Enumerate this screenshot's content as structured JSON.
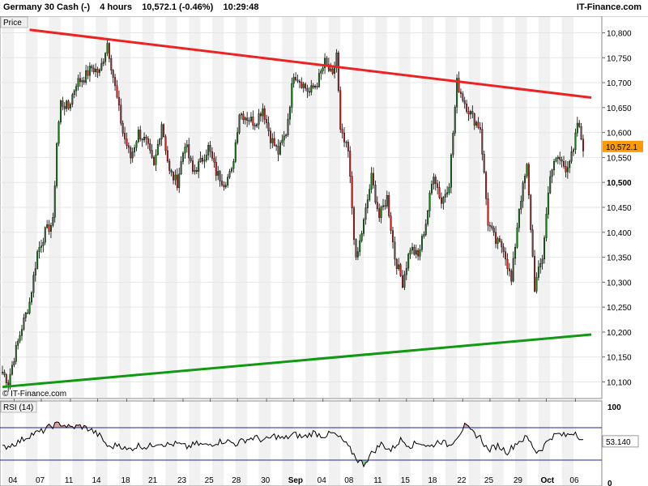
{
  "header": {
    "instrument": "Germany 30 Cash (-)",
    "timeframe": "4 hours",
    "price_change": "10,572.1 (-0.46%)",
    "time": "10:29:48",
    "brand": "IT-Finance.com"
  },
  "panels": {
    "price_label": "Price",
    "rsi_label": "RSI (14)",
    "watermark": "© IT-Finance.com"
  },
  "colors": {
    "up_candle": "#1a7a1a",
    "down_candle": "#cc2222",
    "resistance": "#ee2222",
    "support": "#119911",
    "rsi_band": "#2222aa",
    "overbought_fill": "#d9a0a0",
    "oversold_fill": "#88cc88",
    "last_price_tag": "#ff9900"
  },
  "chart_data": [
    {
      "type": "candlestick",
      "name": "price",
      "ylim": [
        10070,
        10830
      ],
      "y_ticks": [
        "10,800",
        "10,750",
        "10,700",
        "10,650",
        "10,600",
        "10,550",
        "10,500",
        "10,450",
        "10,400",
        "10,350",
        "10,300",
        "10,250",
        "10,200",
        "10,150",
        "10,100"
      ],
      "bold_tick": "10,500",
      "last_price": 10572.1,
      "last_price_label": "10,572.1",
      "x_ticks": [
        "04",
        "07",
        "11",
        "14",
        "18",
        "21",
        "23",
        "25",
        "28",
        "30",
        "Sep",
        "04",
        "08",
        "11",
        "15",
        "18",
        "22",
        "25",
        "29",
        "Oct",
        "06"
      ],
      "bold_x_ticks": [
        "Sep",
        "Oct"
      ],
      "anchors": [
        [
          0,
          10120
        ],
        [
          3,
          10100
        ],
        [
          6,
          10150
        ],
        [
          10,
          10210
        ],
        [
          14,
          10260
        ],
        [
          18,
          10360
        ],
        [
          22,
          10400
        ],
        [
          26,
          10420
        ],
        [
          28,
          10580
        ],
        [
          30,
          10660
        ],
        [
          34,
          10650
        ],
        [
          38,
          10700
        ],
        [
          42,
          10710
        ],
        [
          46,
          10730
        ],
        [
          50,
          10720
        ],
        [
          54,
          10780
        ],
        [
          58,
          10690
        ],
        [
          62,
          10600
        ],
        [
          66,
          10550
        ],
        [
          70,
          10600
        ],
        [
          74,
          10580
        ],
        [
          78,
          10530
        ],
        [
          82,
          10620
        ],
        [
          86,
          10520
        ],
        [
          90,
          10500
        ],
        [
          94,
          10580
        ],
        [
          98,
          10520
        ],
        [
          102,
          10540
        ],
        [
          106,
          10570
        ],
        [
          110,
          10520
        ],
        [
          114,
          10500
        ],
        [
          118,
          10520
        ],
        [
          122,
          10640
        ],
        [
          126,
          10630
        ],
        [
          130,
          10620
        ],
        [
          134,
          10650
        ],
        [
          138,
          10590
        ],
        [
          142,
          10560
        ],
        [
          146,
          10600
        ],
        [
          150,
          10720
        ],
        [
          154,
          10700
        ],
        [
          158,
          10680
        ],
        [
          162,
          10700
        ],
        [
          166,
          10740
        ],
        [
          170,
          10710
        ],
        [
          172,
          10760
        ],
        [
          174,
          10600
        ],
        [
          178,
          10560
        ],
        [
          182,
          10340
        ],
        [
          186,
          10420
        ],
        [
          190,
          10510
        ],
        [
          194,
          10430
        ],
        [
          198,
          10470
        ],
        [
          202,
          10350
        ],
        [
          206,
          10300
        ],
        [
          210,
          10370
        ],
        [
          214,
          10350
        ],
        [
          218,
          10420
        ],
        [
          222,
          10520
        ],
        [
          226,
          10460
        ],
        [
          230,
          10500
        ],
        [
          234,
          10700
        ],
        [
          238,
          10660
        ],
        [
          242,
          10630
        ],
        [
          246,
          10610
        ],
        [
          250,
          10420
        ],
        [
          254,
          10380
        ],
        [
          258,
          10370
        ],
        [
          262,
          10300
        ],
        [
          266,
          10450
        ],
        [
          270,
          10530
        ],
        [
          274,
          10290
        ],
        [
          278,
          10350
        ],
        [
          282,
          10520
        ],
        [
          286,
          10550
        ],
        [
          290,
          10530
        ],
        [
          294,
          10560
        ],
        [
          296,
          10620
        ],
        [
          299,
          10572
        ]
      ],
      "trendlines": [
        {
          "name": "resistance",
          "from": [
            14,
            10806
          ],
          "to": [
            299,
            10670
          ]
        },
        {
          "name": "support",
          "from": [
            0,
            10090
          ],
          "to": [
            299,
            10195
          ]
        }
      ]
    },
    {
      "type": "line",
      "name": "RSI (14)",
      "ylim": [
        0,
        100
      ],
      "y_ticks": [
        "100",
        "0"
      ],
      "bands": [
        30,
        70
      ],
      "last_value": 53.14,
      "last_label": "53.140",
      "anchors": [
        [
          0,
          45
        ],
        [
          8,
          52
        ],
        [
          15,
          62
        ],
        [
          20,
          65
        ],
        [
          25,
          72
        ],
        [
          30,
          75
        ],
        [
          35,
          70
        ],
        [
          40,
          72
        ],
        [
          45,
          68
        ],
        [
          50,
          60
        ],
        [
          55,
          45
        ],
        [
          60,
          50
        ],
        [
          64,
          42
        ],
        [
          70,
          48
        ],
        [
          75,
          46
        ],
        [
          80,
          52
        ],
        [
          85,
          49
        ],
        [
          90,
          50
        ],
        [
          95,
          46
        ],
        [
          100,
          50
        ],
        [
          105,
          48
        ],
        [
          110,
          52
        ],
        [
          115,
          54
        ],
        [
          120,
          50
        ],
        [
          125,
          55
        ],
        [
          130,
          58
        ],
        [
          135,
          54
        ],
        [
          140,
          60
        ],
        [
          145,
          56
        ],
        [
          150,
          62
        ],
        [
          155,
          58
        ],
        [
          160,
          64
        ],
        [
          165,
          60
        ],
        [
          170,
          63
        ],
        [
          175,
          55
        ],
        [
          180,
          40
        ],
        [
          183,
          30
        ],
        [
          186,
          25
        ],
        [
          190,
          38
        ],
        [
          195,
          50
        ],
        [
          200,
          42
        ],
        [
          205,
          55
        ],
        [
          210,
          48
        ],
        [
          215,
          52
        ],
        [
          220,
          46
        ],
        [
          225,
          54
        ],
        [
          230,
          48
        ],
        [
          235,
          62
        ],
        [
          238,
          72
        ],
        [
          242,
          64
        ],
        [
          246,
          58
        ],
        [
          250,
          42
        ],
        [
          255,
          48
        ],
        [
          260,
          40
        ],
        [
          265,
          52
        ],
        [
          270,
          58
        ],
        [
          275,
          40
        ],
        [
          278,
          45
        ],
        [
          282,
          58
        ],
        [
          286,
          62
        ],
        [
          290,
          60
        ],
        [
          295,
          65
        ],
        [
          299,
          53
        ]
      ]
    }
  ]
}
